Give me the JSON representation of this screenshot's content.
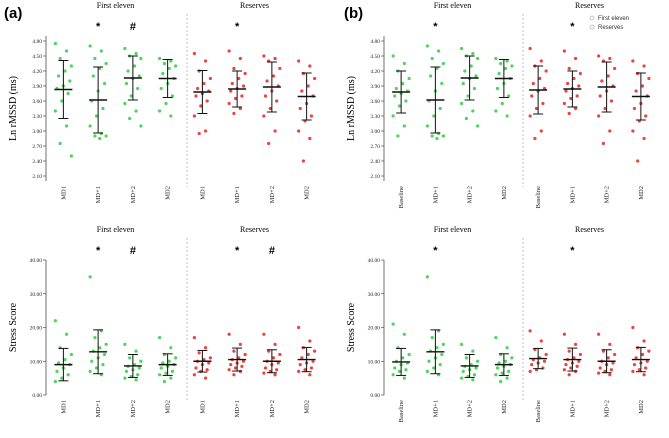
{
  "figure": {
    "panel_labels": [
      "(a)",
      "(b)"
    ],
    "legend": [
      {
        "label": "First eleven",
        "color": "#ffffff"
      },
      {
        "label": "Reserves",
        "color": "#ffffff"
      }
    ]
  },
  "chart_data": [
    {
      "type": "scatter",
      "panel": "(a)",
      "row": "top",
      "ylabel": "Ln rMSSD (ms)",
      "ylim": [
        2.0,
        4.9
      ],
      "yticks": [
        "2.10",
        "2.40",
        "2.70",
        "3.00",
        "3.30",
        "3.60",
        "3.90",
        "4.20",
        "4.50",
        "4.80"
      ],
      "groups": [
        {
          "title": "First eleven",
          "color": "#2ecc40",
          "categories": [
            {
              "label": "MD1",
              "mean": 3.83,
              "sd": 0.58,
              "sig": "",
              "points": [
                4.75,
                4.6,
                4.45,
                4.3,
                4.2,
                4.1,
                4.0,
                3.9,
                3.85,
                3.75,
                3.6,
                3.4,
                3.1,
                2.75,
                2.5
              ]
            },
            {
              "label": "MD+1",
              "mean": 3.62,
              "sd": 0.66,
              "sig": "*",
              "points": [
                4.7,
                4.6,
                4.45,
                4.35,
                4.25,
                4.1,
                3.95,
                3.8,
                3.6,
                3.45,
                3.3,
                3.1,
                2.95,
                2.9,
                2.9,
                2.85
              ]
            },
            {
              "label": "MD+2",
              "mean": 4.06,
              "sd": 0.44,
              "sig": "#",
              "points": [
                4.65,
                4.55,
                4.5,
                4.45,
                4.3,
                4.2,
                4.1,
                4.05,
                3.95,
                3.85,
                3.7,
                3.55,
                3.4,
                3.25,
                3.1
              ]
            },
            {
              "label": "MD2",
              "mean": 4.05,
              "sd": 0.38,
              "sig": "",
              "points": [
                4.45,
                4.4,
                4.35,
                4.3,
                4.25,
                4.15,
                4.05,
                3.95,
                3.85,
                3.7,
                3.55,
                3.4,
                3.3
              ]
            }
          ]
        },
        {
          "title": "Reserves",
          "color": "#e8221e",
          "categories": [
            {
              "label": "MD1",
              "mean": 3.78,
              "sd": 0.43,
              "sig": "",
              "points": [
                4.55,
                4.4,
                4.2,
                4.05,
                3.95,
                3.85,
                3.8,
                3.75,
                3.7,
                3.6,
                3.5,
                3.3,
                3.0,
                2.95
              ]
            },
            {
              "label": "MD+1",
              "mean": 3.84,
              "sd": 0.36,
              "sig": "*",
              "points": [
                4.6,
                4.45,
                4.25,
                4.15,
                4.05,
                3.95,
                3.9,
                3.85,
                3.8,
                3.7,
                3.65,
                3.55,
                3.45,
                3.35
              ]
            },
            {
              "label": "MD+2",
              "mean": 3.88,
              "sd": 0.5,
              "sig": "",
              "points": [
                4.5,
                4.45,
                4.4,
                4.25,
                4.1,
                4.0,
                3.9,
                3.8,
                3.7,
                3.6,
                3.45,
                3.3,
                3.0,
                2.75
              ]
            },
            {
              "label": "MD2",
              "mean": 3.69,
              "sd": 0.47,
              "sig": "",
              "points": [
                4.4,
                4.3,
                4.15,
                4.05,
                3.9,
                3.8,
                3.7,
                3.55,
                3.45,
                3.3,
                3.2,
                3.0,
                2.85,
                2.4
              ]
            }
          ]
        }
      ]
    },
    {
      "type": "scatter",
      "panel": "(a)",
      "row": "bottom",
      "ylabel": "Stress Score",
      "ylim": [
        0,
        40
      ],
      "yticks": [
        "0.00",
        "10.00",
        "20.00",
        "30.00",
        "40.00"
      ],
      "groups": [
        {
          "title": "First eleven",
          "color": "#2ecc40",
          "categories": [
            {
              "label": "MD1",
              "mean": 9.0,
              "sd": 4.8,
              "sig": "",
              "points": [
                22.0,
                18.0,
                14.0,
                12.0,
                10.5,
                9.5,
                9.0,
                8.0,
                7.0,
                6.0,
                5.0,
                4.0
              ]
            },
            {
              "label": "MD+1",
              "mean": 12.8,
              "sd": 6.5,
              "sig": "*",
              "points": [
                35.0,
                19.0,
                17.0,
                15.0,
                14.0,
                13.0,
                12.0,
                11.0,
                10.0,
                9.0,
                8.0,
                7.0,
                6.0
              ]
            },
            {
              "label": "MD+2",
              "mean": 8.6,
              "sd": 3.4,
              "sig": "#",
              "points": [
                15.0,
                13.0,
                11.0,
                10.0,
                9.0,
                8.5,
                8.0,
                7.5,
                7.0,
                6.0,
                5.5,
                5.0,
                4.5
              ]
            },
            {
              "label": "MD2",
              "mean": 9.0,
              "sd": 3.2,
              "sig": "",
              "points": [
                17.0,
                14.0,
                12.0,
                11.0,
                10.0,
                9.5,
                9.0,
                8.5,
                8.0,
                7.0,
                6.5,
                6.0,
                5.0,
                4.0
              ]
            }
          ]
        },
        {
          "title": "Reserves",
          "color": "#e8221e",
          "categories": [
            {
              "label": "MD1",
              "mean": 10.0,
              "sd": 3.2,
              "sig": "",
              "points": [
                17.0,
                14.0,
                12.5,
                11.0,
                10.5,
                10.0,
                9.5,
                9.0,
                8.0,
                7.5,
                7.0,
                6.0,
                5.0
              ]
            },
            {
              "label": "MD+1",
              "mean": 10.5,
              "sd": 3.4,
              "sig": "*",
              "points": [
                18.0,
                15.0,
                13.0,
                12.0,
                11.0,
                10.5,
                10.0,
                9.5,
                9.0,
                8.5,
                8.0,
                7.5,
                7.0,
                6.0
              ]
            },
            {
              "label": "MD+2",
              "mean": 10.0,
              "sd": 3.4,
              "sig": "#",
              "points": [
                18.0,
                15.0,
                13.0,
                12.0,
                11.0,
                10.0,
                9.5,
                9.0,
                8.0,
                7.5,
                7.0,
                6.5,
                6.0
              ]
            },
            {
              "label": "MD2",
              "mean": 10.5,
              "sd": 3.6,
              "sig": "",
              "points": [
                20.0,
                16.0,
                14.0,
                13.0,
                12.0,
                11.0,
                10.0,
                9.5,
                9.0,
                8.0,
                7.5,
                7.0,
                6.0
              ]
            }
          ]
        }
      ]
    },
    {
      "type": "scatter",
      "panel": "(b)",
      "row": "top",
      "ylabel": "Ln rMSSD (ms)",
      "ylim": [
        2.0,
        4.9
      ],
      "yticks": [
        "2.10",
        "2.40",
        "2.70",
        "3.00",
        "3.30",
        "3.60",
        "3.90",
        "4.20",
        "4.50",
        "4.80"
      ],
      "groups": [
        {
          "title": "First eleven",
          "color": "#2ecc40",
          "categories": [
            {
              "label": "Baseline",
              "mean": 3.78,
              "sd": 0.42,
              "sig": "",
              "points": [
                4.5,
                4.35,
                4.2,
                4.05,
                3.95,
                3.85,
                3.8,
                3.75,
                3.7,
                3.6,
                3.5,
                3.3,
                3.1,
                2.9
              ]
            },
            {
              "label": "MD+1",
              "mean": 3.62,
              "sd": 0.66,
              "sig": "*",
              "points": [
                4.7,
                4.6,
                4.45,
                4.35,
                4.25,
                4.1,
                3.95,
                3.8,
                3.6,
                3.45,
                3.3,
                3.1,
                2.95,
                2.9,
                2.9,
                2.85
              ]
            },
            {
              "label": "MD+2",
              "mean": 4.06,
              "sd": 0.44,
              "sig": "",
              "points": [
                4.65,
                4.55,
                4.5,
                4.45,
                4.3,
                4.2,
                4.1,
                4.05,
                3.95,
                3.85,
                3.7,
                3.55,
                3.4,
                3.25,
                3.1
              ]
            },
            {
              "label": "MD2",
              "mean": 4.05,
              "sd": 0.38,
              "sig": "",
              "points": [
                4.45,
                4.4,
                4.35,
                4.3,
                4.25,
                4.15,
                4.05,
                3.95,
                3.85,
                3.7,
                3.55,
                3.4,
                3.3
              ]
            }
          ]
        },
        {
          "title": "Reserves",
          "color": "#e8221e",
          "categories": [
            {
              "label": "Baseline",
              "mean": 3.82,
              "sd": 0.48,
              "sig": "",
              "points": [
                4.65,
                4.4,
                4.3,
                4.2,
                4.05,
                3.95,
                3.85,
                3.8,
                3.7,
                3.55,
                3.45,
                3.3,
                3.0,
                2.85
              ]
            },
            {
              "label": "MD+1",
              "mean": 3.84,
              "sd": 0.36,
              "sig": "*",
              "points": [
                4.6,
                4.45,
                4.25,
                4.15,
                4.05,
                3.95,
                3.9,
                3.85,
                3.8,
                3.7,
                3.65,
                3.55,
                3.45,
                3.35
              ]
            },
            {
              "label": "MD+2",
              "mean": 3.88,
              "sd": 0.5,
              "sig": "",
              "points": [
                4.5,
                4.45,
                4.4,
                4.25,
                4.1,
                4.0,
                3.9,
                3.8,
                3.7,
                3.6,
                3.45,
                3.3,
                3.0,
                2.75
              ]
            },
            {
              "label": "MD2",
              "mean": 3.69,
              "sd": 0.47,
              "sig": "",
              "points": [
                4.4,
                4.3,
                4.15,
                4.05,
                3.9,
                3.8,
                3.7,
                3.55,
                3.45,
                3.3,
                3.2,
                3.0,
                2.85,
                2.4
              ]
            }
          ]
        }
      ]
    },
    {
      "type": "scatter",
      "panel": "(b)",
      "row": "bottom",
      "ylabel": "Stress Score",
      "ylim": [
        0,
        40
      ],
      "yticks": [
        "0.00",
        "10.00",
        "20.00",
        "30.00",
        "40.00"
      ],
      "groups": [
        {
          "title": "First eleven",
          "color": "#2ecc40",
          "categories": [
            {
              "label": "Baseline",
              "mean": 9.8,
              "sd": 4.0,
              "sig": "",
              "points": [
                21.0,
                18.0,
                14.0,
                12.0,
                11.0,
                10.0,
                9.5,
                9.0,
                8.0,
                7.5,
                7.0,
                6.0,
                5.0
              ]
            },
            {
              "label": "MD+1",
              "mean": 12.8,
              "sd": 6.5,
              "sig": "*",
              "points": [
                35.0,
                19.0,
                17.0,
                15.0,
                14.0,
                13.0,
                12.0,
                11.0,
                10.0,
                9.0,
                8.0,
                7.0,
                6.0
              ]
            },
            {
              "label": "MD+2",
              "mean": 8.6,
              "sd": 3.4,
              "sig": "",
              "points": [
                15.0,
                13.0,
                11.0,
                10.0,
                9.0,
                8.5,
                8.0,
                7.5,
                7.0,
                6.0,
                5.5,
                5.0,
                4.5
              ]
            },
            {
              "label": "MD2",
              "mean": 9.0,
              "sd": 3.2,
              "sig": "",
              "points": [
                17.0,
                14.0,
                12.0,
                11.0,
                10.0,
                9.5,
                9.0,
                8.5,
                8.0,
                7.0,
                6.5,
                6.0,
                5.0,
                4.0
              ]
            }
          ]
        },
        {
          "title": "Reserves",
          "color": "#e8221e",
          "categories": [
            {
              "label": "Baseline",
              "mean": 10.8,
              "sd": 3.0,
              "sig": "",
              "points": [
                19.0,
                16.0,
                13.5,
                12.0,
                11.0,
                10.5,
                10.0,
                9.5,
                9.0,
                8.0,
                7.5,
                7.0
              ]
            },
            {
              "label": "MD+1",
              "mean": 10.5,
              "sd": 3.4,
              "sig": "*",
              "points": [
                18.0,
                15.0,
                13.0,
                12.0,
                11.0,
                10.5,
                10.0,
                9.5,
                9.0,
                8.5,
                8.0,
                7.5,
                7.0,
                6.0
              ]
            },
            {
              "label": "MD+2",
              "mean": 10.0,
              "sd": 3.4,
              "sig": "",
              "points": [
                18.0,
                15.0,
                13.0,
                12.0,
                11.0,
                10.0,
                9.5,
                9.0,
                8.0,
                7.5,
                7.0,
                6.5,
                6.0
              ]
            },
            {
              "label": "MD2",
              "mean": 10.5,
              "sd": 3.6,
              "sig": "",
              "points": [
                20.0,
                16.0,
                14.0,
                13.0,
                12.0,
                11.0,
                10.0,
                9.5,
                9.0,
                8.0,
                7.5,
                7.0,
                6.0
              ]
            }
          ]
        }
      ]
    }
  ]
}
